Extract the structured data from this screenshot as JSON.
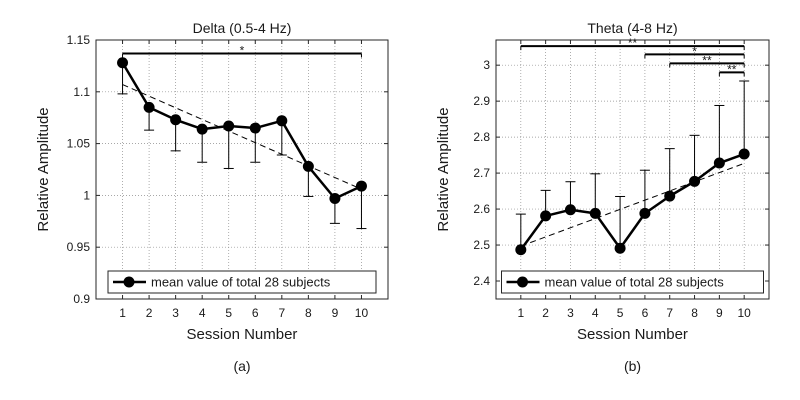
{
  "chart_data": [
    {
      "type": "line",
      "title": "Delta (0.5-4 Hz)",
      "xlabel": "Session Number",
      "ylabel": "Relative Amplitude",
      "subcaption": "(a)",
      "x": [
        1,
        2,
        3,
        4,
        5,
        6,
        7,
        8,
        9,
        10
      ],
      "xlim": [
        0,
        11
      ],
      "ylim": [
        0.9,
        1.15
      ],
      "yticks": [
        0.9,
        0.95,
        1,
        1.05,
        1.1,
        1.15
      ],
      "ytick_labels": [
        "0.9",
        "0.95",
        "1",
        "1.05",
        "1.1",
        "1.15"
      ],
      "grid": true,
      "legend_placement": "bottom",
      "series": [
        {
          "name": "mean value of total 28 subjects",
          "values": [
            1.128,
            1.085,
            1.073,
            1.064,
            1.067,
            1.065,
            1.072,
            1.028,
            0.997,
            1.009
          ],
          "error_plus": [
            0.0,
            0.0,
            0.0,
            0.0,
            0.0,
            0.0,
            0.0,
            0.0,
            0.0,
            0.0
          ],
          "error_minus": [
            0.03,
            0.022,
            0.03,
            0.032,
            0.041,
            0.033,
            0.033,
            0.029,
            0.024,
            0.041
          ]
        }
      ],
      "trend": {
        "x": [
          1,
          10
        ],
        "y": [
          1.107,
          1.006
        ]
      },
      "significance": [
        {
          "from": 1,
          "to": 10,
          "y": 1.137,
          "label": "*"
        }
      ]
    },
    {
      "type": "line",
      "title": "Theta (4-8 Hz)",
      "xlabel": "Session Number",
      "ylabel": "Relative Amplitude",
      "subcaption": "(b)",
      "x": [
        1,
        2,
        3,
        4,
        5,
        6,
        7,
        8,
        9,
        10
      ],
      "xlim": [
        0,
        11
      ],
      "ylim": [
        2.35,
        3.07
      ],
      "yticks": [
        2.4,
        2.5,
        2.6,
        2.7,
        2.8,
        2.9,
        3.0
      ],
      "ytick_labels": [
        "2.4",
        "2.5",
        "2.6",
        "2.7",
        "2.8",
        "2.9",
        "3"
      ],
      "grid": true,
      "legend_placement": "bottom",
      "series": [
        {
          "name": "mean value of total 28 subjects",
          "values": [
            2.487,
            2.581,
            2.598,
            2.588,
            2.491,
            2.588,
            2.636,
            2.677,
            2.728,
            2.753
          ],
          "error_plus": [
            0.099,
            0.071,
            0.078,
            0.11,
            0.144,
            0.12,
            0.132,
            0.128,
            0.16,
            0.203
          ],
          "error_minus": [
            0.0,
            0.0,
            0.0,
            0.0,
            0.0,
            0.0,
            0.0,
            0.0,
            0.0,
            0.0
          ]
        }
      ],
      "trend": {
        "x": [
          1,
          10
        ],
        "y": [
          2.497,
          2.727
        ]
      },
      "significance": [
        {
          "from": 1,
          "to": 10,
          "y": 3.053,
          "label": "**"
        },
        {
          "from": 6,
          "to": 10,
          "y": 3.03,
          "label": "*"
        },
        {
          "from": 7,
          "to": 10,
          "y": 3.005,
          "label": "**"
        },
        {
          "from": 9,
          "to": 10,
          "y": 2.98,
          "label": "**"
        }
      ]
    }
  ]
}
